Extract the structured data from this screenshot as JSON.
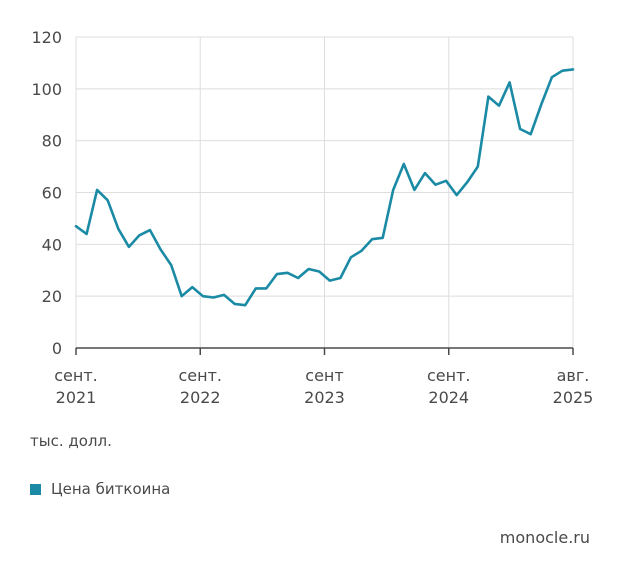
{
  "chart_data": {
    "type": "line",
    "ylim": [
      0,
      120
    ],
    "yticks": [
      0,
      20,
      40,
      60,
      80,
      100,
      120
    ],
    "xticks": [
      {
        "line1": "сент.",
        "line2": "2021"
      },
      {
        "line1": "сент.",
        "line2": "2022"
      },
      {
        "line1": "сент",
        "line2": "2023"
      },
      {
        "line1": "сент.",
        "line2": "2024"
      },
      {
        "line1": "авг.",
        "line2": "2025"
      }
    ],
    "unit_label": "тыс. долл.",
    "grid": true,
    "series": [
      {
        "name": "Цена биткоина",
        "color": "#1a8aa5",
        "values": [
          47,
          44,
          61,
          57,
          46,
          39,
          43.5,
          45.5,
          38,
          32,
          20,
          23.5,
          20,
          19.5,
          20.5,
          17,
          16.5,
          23,
          23,
          28.5,
          29,
          27,
          30.5,
          29.5,
          26,
          27,
          35,
          37.5,
          42,
          42.5,
          61,
          71,
          61,
          67.5,
          63,
          64.5,
          59,
          64,
          70,
          97,
          93.5,
          102.5,
          84.5,
          82.5,
          94,
          104.5,
          107,
          107.5
        ]
      }
    ]
  },
  "footer": {
    "source": "monocle.ru"
  }
}
